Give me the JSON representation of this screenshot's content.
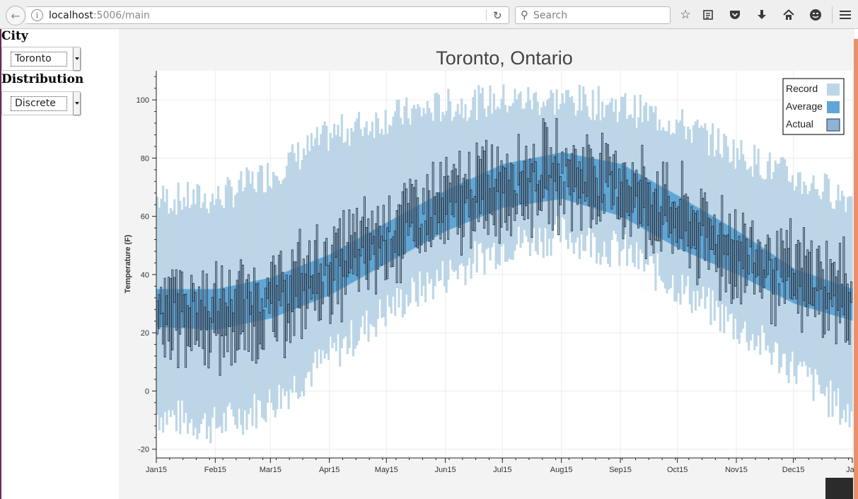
{
  "browser": {
    "url_host": "localhost",
    "url_path": ":5006/main",
    "search_placeholder": "Search",
    "icons": [
      "back-arrow-icon",
      "info-icon",
      "reload-icon",
      "search-icon",
      "bookmark-star-icon",
      "reading-list-icon",
      "pocket-icon",
      "download-icon",
      "home-icon",
      "smiley-icon",
      "menu-icon"
    ]
  },
  "controls": {
    "city_label": "City",
    "city_value": "Toronto",
    "distribution_label": "Distribution",
    "distribution_value": "Discrete"
  },
  "colors": {
    "record": "#bcd6e7",
    "average": "#5fa6d5",
    "actual": "#8fb3d4",
    "actual_outline": "#1a2a3a",
    "accent": "#e8926d"
  },
  "chart_data": {
    "type": "bar",
    "title": "Toronto, Ontario",
    "xlabel": "",
    "ylabel": "Temperature (F)",
    "ylim": [
      -23,
      110
    ],
    "yticks": [
      -20,
      0,
      20,
      40,
      60,
      80,
      100
    ],
    "xtick_labels": [
      "Jan15",
      "Feb15",
      "Mar15",
      "Apr15",
      "May15",
      "Jun15",
      "Jul15",
      "Aug15",
      "Sep15",
      "Oct15",
      "Nov15",
      "Dec15",
      "Jan"
    ],
    "x_range_days": [
      14,
      380
    ],
    "grid": true,
    "legend_position": "top-right",
    "series": [
      {
        "name": "Record",
        "color": "#bcd6e7",
        "knots_day": [
          14,
          45,
          74,
          105,
          135,
          166,
          196,
          227,
          258,
          288,
          319,
          349,
          380
        ],
        "low": [
          -8,
          -12,
          -4,
          12,
          28,
          40,
          50,
          54,
          48,
          36,
          22,
          8,
          -10
        ],
        "high": [
          66,
          66,
          75,
          88,
          94,
          98,
          100,
          100,
          98,
          92,
          82,
          73,
          66
        ]
      },
      {
        "name": "Average",
        "color": "#5fa6d5",
        "knots_day": [
          14,
          45,
          74,
          105,
          135,
          166,
          196,
          227,
          258,
          288,
          319,
          349,
          380
        ],
        "low": [
          22,
          21,
          25,
          33,
          44,
          55,
          63,
          66,
          60,
          49,
          40,
          30,
          24
        ],
        "high": [
          35,
          35,
          39,
          47,
          58,
          69,
          78,
          82,
          78,
          67,
          55,
          42,
          35
        ]
      },
      {
        "name": "Actual",
        "color": "#8fb3d4",
        "knots_day": [
          14,
          45,
          74,
          105,
          135,
          166,
          196,
          227,
          258,
          288,
          319,
          349,
          380
        ],
        "low": [
          19,
          13,
          17,
          29,
          42,
          52,
          60,
          63,
          57,
          46,
          36,
          28,
          22
        ],
        "high": [
          40,
          36,
          42,
          54,
          64,
          74,
          82,
          85,
          82,
          71,
          58,
          48,
          42
        ]
      }
    ]
  }
}
